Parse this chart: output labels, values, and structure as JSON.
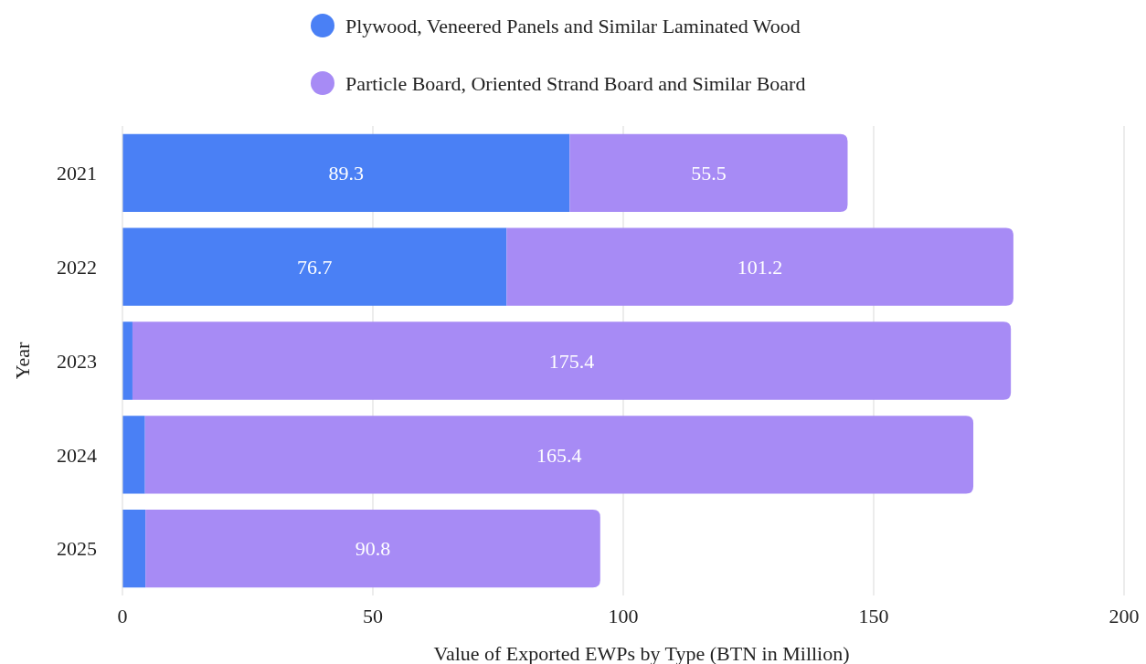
{
  "chart_data": {
    "type": "bar",
    "orientation": "horizontal",
    "stacked": true,
    "xlabel": "Value of Exported EWPs by Type (BTN in Million)",
    "ylabel": "Year",
    "categories": [
      "2021",
      "2022",
      "2023",
      "2024",
      "2025"
    ],
    "series": [
      {
        "name": "Plywood, Veneered Panels and Similar Laminated Wood",
        "color": "#4a80f5",
        "values": [
          89.3,
          76.7,
          2.0,
          4.5,
          4.6
        ],
        "value_labels": [
          "89.3",
          "76.7",
          null,
          null,
          null
        ]
      },
      {
        "name": "Particle Board, Oriented Strand Board and Similar Board",
        "color": "#a78bf5",
        "values": [
          55.5,
          101.2,
          175.4,
          165.4,
          90.8
        ],
        "value_labels": [
          "55.5",
          "101.2",
          "175.4",
          "165.4",
          "90.8"
        ]
      }
    ],
    "xlim": [
      0,
      200
    ],
    "xticks": [
      0,
      50,
      100,
      150,
      200
    ],
    "grid": "x",
    "legend": "top"
  }
}
